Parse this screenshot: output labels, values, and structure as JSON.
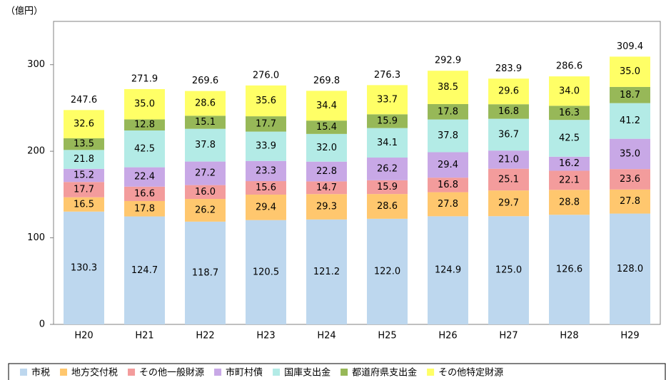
{
  "chart_data": {
    "type": "stacked_bar",
    "y_unit_label": "（億円）",
    "categories": [
      "H20",
      "H21",
      "H22",
      "H23",
      "H24",
      "H25",
      "H26",
      "H27",
      "H28",
      "H29"
    ],
    "series": [
      {
        "name": "市税",
        "color": "#bdd7ee",
        "values": [
          130.3,
          124.7,
          118.7,
          120.5,
          121.2,
          122.0,
          124.9,
          125.0,
          126.6,
          128.0
        ],
        "value_labels": [
          "130.3",
          "124.7",
          "118.7",
          "120.5",
          "121.2",
          "122.0",
          "124.9",
          "125.0",
          "126.6",
          "128.0"
        ]
      },
      {
        "name": "地方交付税",
        "color": "#ffc76e",
        "values": [
          16.5,
          17.8,
          26.2,
          29.4,
          29.3,
          28.6,
          27.8,
          29.7,
          28.8,
          27.8
        ],
        "value_labels": [
          "16.5",
          "17.8",
          "26.2",
          "29.4",
          "29.3",
          "28.6",
          "27.8",
          "29.7",
          "28.8",
          "27.8"
        ]
      },
      {
        "name": "その他一般財源",
        "color": "#f39c9c",
        "values": [
          17.7,
          16.6,
          16.0,
          15.6,
          14.7,
          15.9,
          16.8,
          25.1,
          22.1,
          23.6
        ],
        "value_labels": [
          "17.7",
          "16.6",
          "16.0",
          "15.6",
          "14.7",
          "15.9",
          "16.8",
          "25.1",
          "22.1",
          "23.6"
        ]
      },
      {
        "name": "市町村債",
        "color": "#c8a8e6",
        "values": [
          15.2,
          22.4,
          27.2,
          23.3,
          22.8,
          26.2,
          29.4,
          21.0,
          16.2,
          35.0
        ],
        "value_labels": [
          "15.2",
          "22.4",
          "27.2",
          "23.3",
          "22.8",
          "26.2",
          "29.4",
          "21.0",
          "16.2",
          "35.0"
        ]
      },
      {
        "name": "国庫支出金",
        "color": "#b3ebe6",
        "values": [
          21.8,
          42.5,
          37.8,
          33.9,
          32.0,
          34.1,
          37.8,
          36.7,
          42.5,
          41.2
        ],
        "value_labels": [
          "21.8",
          "42.5",
          "37.8",
          "33.9",
          "32.0",
          "34.1",
          "37.8",
          "36.7",
          "42.5",
          "41.2"
        ]
      },
      {
        "name": "都道府県支出金",
        "color": "#97b858",
        "values": [
          13.5,
          12.8,
          15.1,
          17.7,
          15.4,
          15.9,
          17.8,
          16.8,
          16.3,
          18.7
        ],
        "value_labels": [
          "13.5",
          "12.8",
          "15.1",
          "17.7",
          "15.4",
          "15.9",
          "17.8",
          "16.8",
          "16.3",
          "18.7"
        ]
      },
      {
        "name": "その他特定財源",
        "color": "#ffff66",
        "values": [
          32.6,
          35.0,
          28.6,
          35.6,
          34.4,
          33.7,
          38.5,
          29.6,
          34.0,
          35.0
        ],
        "value_labels": [
          "32.6",
          "35.0",
          "28.6",
          "35.6",
          "34.4",
          "33.7",
          "38.5",
          "29.6",
          "34.0",
          "35.0"
        ]
      }
    ],
    "totals": [
      247.6,
      271.9,
      269.6,
      276.0,
      269.8,
      276.3,
      292.9,
      283.9,
      286.6,
      309.4
    ],
    "total_labels": [
      "247.6",
      "271.9",
      "269.6",
      "276.0",
      "269.8",
      "276.3",
      "292.9",
      "283.9",
      "286.6",
      "309.4"
    ],
    "ylim": [
      0,
      350
    ],
    "yticks": [
      0,
      100,
      200,
      300
    ],
    "grid": false,
    "legend": "bottom"
  }
}
